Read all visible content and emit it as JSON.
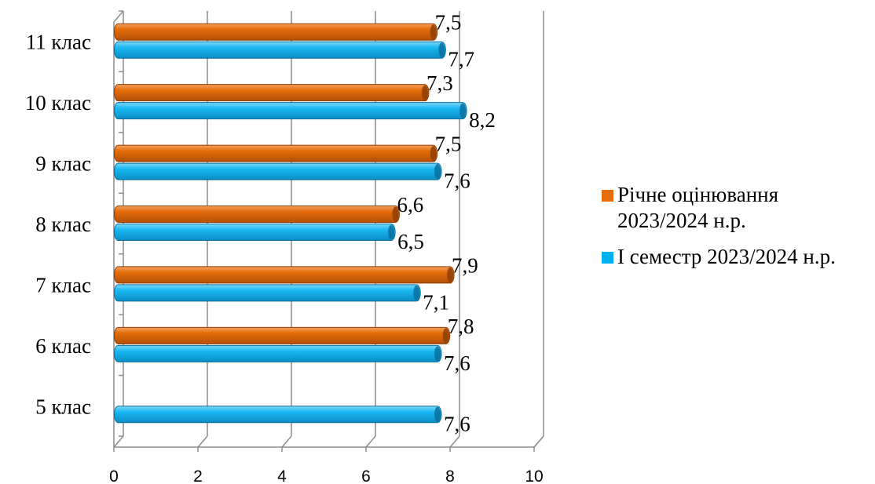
{
  "chart_data": {
    "type": "bar",
    "orientation": "horizontal",
    "style": "3d-cylinder",
    "categories": [
      "5  клас",
      "6 клас",
      "7 клас",
      "8 клас",
      "9  клас",
      "10 клас",
      "11  клас"
    ],
    "series": [
      {
        "name": "І семестр 2023/2024 н.р.",
        "color": "#00b0f0",
        "values": [
          7.6,
          7.6,
          7.1,
          6.5,
          7.6,
          8.2,
          7.7
        ],
        "labels": [
          "7,6",
          "7,6",
          "7,1",
          "6,5",
          "7,6",
          "8,2",
          "7,7"
        ]
      },
      {
        "name": "Річне оцінювання 2023/2024 н.р.",
        "color": "#e46c0a",
        "values": [
          null,
          7.8,
          7.9,
          6.6,
          7.5,
          7.3,
          7.5
        ],
        "labels": [
          "",
          "7,8",
          "7,9",
          "6,6",
          "7,5",
          "7,3",
          "7,5"
        ]
      }
    ],
    "x_ticks": [
      "0",
      "2",
      "4",
      "6",
      "8",
      "10"
    ],
    "xlim": [
      0,
      10
    ],
    "grid": true,
    "legend_position": "right"
  },
  "legend": {
    "items": [
      {
        "label_line1": "Річне оцінювання",
        "label_line2": "2023/2024 н.р.",
        "color": "#e46c0a"
      },
      {
        "label_line1": "І семестр 2023/2024 н.р.",
        "label_line2": "",
        "color": "#00b0f0"
      }
    ]
  }
}
